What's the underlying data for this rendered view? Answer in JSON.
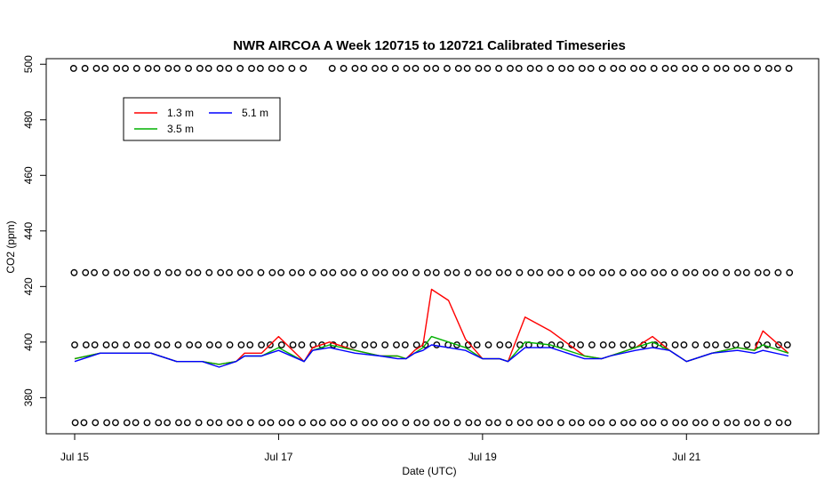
{
  "chart_data": {
    "type": "line",
    "title": "NWR AIRCOA A  Week 120715 to 120721  Calibrated Timeseries",
    "xlabel": "Date (UTC)",
    "ylabel": "CO2 (ppm)",
    "xlim": [
      "2012-07-15T00:00",
      "2012-07-22T00:00"
    ],
    "ylim": [
      367,
      502
    ],
    "x_ticks": [
      "Jul 15",
      "Jul 17",
      "Jul 19",
      "Jul 21"
    ],
    "x_tick_dates": [
      "2012-07-15",
      "2012-07-17",
      "2012-07-19",
      "2012-07-21"
    ],
    "y_ticks": [
      380,
      400,
      420,
      440,
      460,
      480,
      500
    ],
    "legend": {
      "placement": "top-left",
      "entries": [
        "1.3 m",
        "3.5 m",
        "5.1 m"
      ]
    },
    "series": [
      {
        "name": "1.3 m",
        "color": "#ff0000",
        "x": [
          "2012-07-15T00:00",
          "2012-07-15T06:00",
          "2012-07-15T12:00",
          "2012-07-15T18:00",
          "2012-07-16T00:00",
          "2012-07-16T06:00",
          "2012-07-16T10:00",
          "2012-07-16T14:00",
          "2012-07-16T16:00",
          "2012-07-16T20:00",
          "2012-07-17T00:00",
          "2012-07-17T06:00",
          "2012-07-17T08:00",
          "2012-07-17T12:00",
          "2012-07-17T18:00",
          "2012-07-18T00:00",
          "2012-07-18T04:00",
          "2012-07-18T06:00",
          "2012-07-18T08:00",
          "2012-07-18T10:00",
          "2012-07-18T12:00",
          "2012-07-18T16:00",
          "2012-07-18T20:00",
          "2012-07-19T00:00",
          "2012-07-19T04:00",
          "2012-07-19T06:00",
          "2012-07-19T10:00",
          "2012-07-19T16:00",
          "2012-07-20T00:00",
          "2012-07-20T04:00",
          "2012-07-20T06:00",
          "2012-07-20T12:00",
          "2012-07-20T16:00",
          "2012-07-20T20:00",
          "2012-07-21T00:00",
          "2012-07-21T06:00",
          "2012-07-21T12:00",
          "2012-07-21T16:00",
          "2012-07-21T18:00",
          "2012-07-22T00:00"
        ],
        "values": [
          394,
          396,
          396,
          396,
          393,
          393,
          392,
          393,
          396,
          396,
          402,
          393,
          398,
          400,
          397,
          395,
          395,
          394,
          397,
          399,
          419,
          415,
          401,
          394,
          394,
          393,
          409,
          404,
          395,
          394,
          395,
          398,
          402,
          397,
          393,
          396,
          398,
          397,
          404,
          396
        ]
      },
      {
        "name": "3.5 m",
        "color": "#00b000",
        "x": [
          "2012-07-15T00:00",
          "2012-07-15T06:00",
          "2012-07-15T12:00",
          "2012-07-15T18:00",
          "2012-07-16T00:00",
          "2012-07-16T06:00",
          "2012-07-16T10:00",
          "2012-07-16T14:00",
          "2012-07-16T16:00",
          "2012-07-16T20:00",
          "2012-07-17T00:00",
          "2012-07-17T06:00",
          "2012-07-17T08:00",
          "2012-07-17T12:00",
          "2012-07-17T18:00",
          "2012-07-18T00:00",
          "2012-07-18T04:00",
          "2012-07-18T06:00",
          "2012-07-18T08:00",
          "2012-07-18T10:00",
          "2012-07-18T12:00",
          "2012-07-18T16:00",
          "2012-07-18T20:00",
          "2012-07-19T00:00",
          "2012-07-19T04:00",
          "2012-07-19T06:00",
          "2012-07-19T10:00",
          "2012-07-19T16:00",
          "2012-07-20T00:00",
          "2012-07-20T04:00",
          "2012-07-20T06:00",
          "2012-07-20T12:00",
          "2012-07-20T16:00",
          "2012-07-20T20:00",
          "2012-07-21T00:00",
          "2012-07-21T06:00",
          "2012-07-21T12:00",
          "2012-07-21T16:00",
          "2012-07-21T18:00",
          "2012-07-22T00:00"
        ],
        "values": [
          394,
          396,
          396,
          396,
          393,
          393,
          392,
          393,
          395,
          395,
          398,
          393,
          397,
          399,
          397,
          395,
          395,
          394,
          396,
          398,
          402,
          400,
          398,
          394,
          394,
          393,
          400,
          399,
          395,
          394,
          395,
          398,
          400,
          397,
          393,
          396,
          398,
          397,
          399,
          396
        ]
      },
      {
        "name": "5.1 m",
        "color": "#0000ff",
        "x": [
          "2012-07-15T00:00",
          "2012-07-15T06:00",
          "2012-07-15T12:00",
          "2012-07-15T18:00",
          "2012-07-16T00:00",
          "2012-07-16T06:00",
          "2012-07-16T10:00",
          "2012-07-16T14:00",
          "2012-07-16T16:00",
          "2012-07-16T20:00",
          "2012-07-17T00:00",
          "2012-07-17T06:00",
          "2012-07-17T08:00",
          "2012-07-17T12:00",
          "2012-07-17T18:00",
          "2012-07-18T00:00",
          "2012-07-18T04:00",
          "2012-07-18T06:00",
          "2012-07-18T08:00",
          "2012-07-18T10:00",
          "2012-07-18T12:00",
          "2012-07-18T16:00",
          "2012-07-18T20:00",
          "2012-07-19T00:00",
          "2012-07-19T04:00",
          "2012-07-19T06:00",
          "2012-07-19T10:00",
          "2012-07-19T16:00",
          "2012-07-20T00:00",
          "2012-07-20T04:00",
          "2012-07-20T06:00",
          "2012-07-20T12:00",
          "2012-07-20T16:00",
          "2012-07-20T20:00",
          "2012-07-21T00:00",
          "2012-07-21T06:00",
          "2012-07-21T12:00",
          "2012-07-21T16:00",
          "2012-07-21T18:00",
          "2012-07-22T00:00"
        ],
        "values": [
          393,
          396,
          396,
          396,
          393,
          393,
          391,
          393,
          395,
          395,
          397,
          393,
          397,
          398,
          396,
          395,
          394,
          394,
          396,
          397,
          399,
          398,
          397,
          394,
          394,
          393,
          398,
          398,
          394,
          394,
          395,
          397,
          398,
          397,
          393,
          396,
          397,
          396,
          397,
          395
        ]
      }
    ],
    "reference_markers": [
      {
        "name": "calibration 499",
        "value": 498.5
      },
      {
        "name": "calibration 425",
        "value": 425
      },
      {
        "name": "calibration 399",
        "value": 399
      },
      {
        "name": "calibration 371",
        "value": 371
      }
    ]
  }
}
